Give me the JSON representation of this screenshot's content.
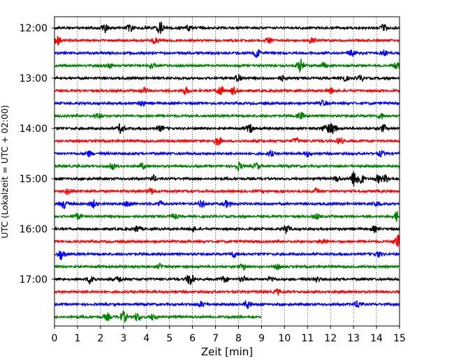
{
  "chart_data": {
    "type": "line",
    "title": "",
    "xlabel": "Zeit  [min]",
    "ylabel": "UTC (Lokalzeit = UTC + 02:00)",
    "xlim": [
      0,
      15
    ],
    "x_ticks": [
      "0",
      "1",
      "2",
      "3",
      "4",
      "5",
      "6",
      "7",
      "8",
      "9",
      "10",
      "11",
      "12",
      "13",
      "14",
      "15"
    ],
    "y_tick_labels": [
      "12:00",
      "13:00",
      "14:00",
      "15:00",
      "16:00",
      "17:00"
    ],
    "grid": "vertical dotted",
    "trace_interval_minutes": 15,
    "color_cycle": [
      "#000000",
      "#ff0000",
      "#0000ff",
      "#008000"
    ],
    "traces": [
      {
        "start": "12:00",
        "end_min": 15,
        "events": [
          [
            2.2,
            2.2
          ],
          [
            3.3,
            1.6
          ],
          [
            4.6,
            2.8
          ],
          [
            5.8,
            1.2
          ],
          [
            14.3,
            1.3
          ]
        ]
      },
      {
        "start": "12:15",
        "end_min": 15,
        "events": [
          [
            0.1,
            2.2
          ],
          [
            4.4,
            1.6
          ],
          [
            9.3,
            1.1
          ],
          [
            11.2,
            1.1
          ]
        ]
      },
      {
        "start": "12:30",
        "end_min": 15,
        "events": [
          [
            8.8,
            1.8
          ],
          [
            12.9,
            1.5
          ],
          [
            14.3,
            1.2
          ]
        ]
      },
      {
        "start": "12:45",
        "end_min": 15,
        "events": [
          [
            2.4,
            1.1
          ],
          [
            4.2,
            1.3
          ],
          [
            10.7,
            3.5
          ],
          [
            11.7,
            1.2
          ],
          [
            14.9,
            1.5
          ]
        ]
      },
      {
        "start": "13:00",
        "end_min": 15,
        "events": [
          [
            8.0,
            1.9
          ],
          [
            9.9,
            1.2
          ],
          [
            12.6,
            1.4
          ],
          [
            13.3,
            1.3
          ]
        ]
      },
      {
        "start": "13:15",
        "end_min": 15,
        "events": [
          [
            3.9,
            1.2
          ],
          [
            5.7,
            1.6
          ],
          [
            7.2,
            2.3
          ],
          [
            7.8,
            1.7
          ],
          [
            12.0,
            1.2
          ]
        ]
      },
      {
        "start": "13:30",
        "end_min": 15,
        "events": [
          [
            3.8,
            1.2
          ],
          [
            11.7,
            1.2
          ]
        ]
      },
      {
        "start": "13:45",
        "end_min": 15,
        "events": [
          [
            1.9,
            1.2
          ],
          [
            10.7,
            1.3
          ],
          [
            14.2,
            1.3
          ]
        ]
      },
      {
        "start": "14:00",
        "end_min": 15,
        "events": [
          [
            2.9,
            2.3
          ],
          [
            4.6,
            1.2
          ],
          [
            8.5,
            2.0
          ],
          [
            11.8,
            2.3
          ],
          [
            12.1,
            2.5
          ],
          [
            14.3,
            1.6
          ]
        ]
      },
      {
        "start": "14:15",
        "end_min": 15,
        "events": [
          [
            7.1,
            2.0
          ],
          [
            10.5,
            1.2
          ],
          [
            12.4,
            1.4
          ]
        ]
      },
      {
        "start": "14:30",
        "end_min": 15,
        "events": [
          [
            1.5,
            1.2
          ],
          [
            9.4,
            1.2
          ],
          [
            11.0,
            1.2
          ],
          [
            14.2,
            1.2
          ]
        ]
      },
      {
        "start": "14:45",
        "end_min": 15,
        "events": [
          [
            2.5,
            1.6
          ],
          [
            3.8,
            1.3
          ],
          [
            8.0,
            1.9
          ],
          [
            8.8,
            1.4
          ]
        ]
      },
      {
        "start": "15:00",
        "end_min": 15,
        "events": [
          [
            4.3,
            1.4
          ],
          [
            12.3,
            1.3
          ],
          [
            13.0,
            3.5
          ],
          [
            13.3,
            3.0
          ],
          [
            14.1,
            1.8
          ],
          [
            14.4,
            1.6
          ]
        ]
      },
      {
        "start": "15:15",
        "end_min": 15,
        "events": [
          [
            0.6,
            1.3
          ],
          [
            4.2,
            1.3
          ],
          [
            11.4,
            1.1
          ]
        ]
      },
      {
        "start": "15:30",
        "end_min": 15,
        "events": [
          [
            0.4,
            1.9
          ],
          [
            1.7,
            1.6
          ],
          [
            3.2,
            1.5
          ],
          [
            4.6,
            1.3
          ],
          [
            6.4,
            1.6
          ],
          [
            7.5,
            1.6
          ],
          [
            14.0,
            1.2
          ]
        ]
      },
      {
        "start": "15:45",
        "end_min": 15,
        "events": [
          [
            1.0,
            1.5
          ],
          [
            5.2,
            1.2
          ],
          [
            11.4,
            1.3
          ],
          [
            14.9,
            2.3
          ]
        ]
      },
      {
        "start": "16:00",
        "end_min": 15,
        "events": [
          [
            3.6,
            1.6
          ],
          [
            6.0,
            1.2
          ],
          [
            10.1,
            2.1
          ],
          [
            13.9,
            1.2
          ]
        ]
      },
      {
        "start": "16:15",
        "end_min": 15,
        "events": [
          [
            11.7,
            1.2
          ],
          [
            14.9,
            3.0
          ]
        ]
      },
      {
        "start": "16:30",
        "end_min": 15,
        "events": [
          [
            0.3,
            2.5
          ],
          [
            7.8,
            1.3
          ],
          [
            14.1,
            1.2
          ]
        ]
      },
      {
        "start": "16:45",
        "end_min": 15,
        "events": [
          [
            4.6,
            1.2
          ],
          [
            8.2,
            1.2
          ],
          [
            9.7,
            1.2
          ]
        ]
      },
      {
        "start": "17:00",
        "end_min": 15,
        "events": [
          [
            1.6,
            2.6
          ],
          [
            2.8,
            1.3
          ],
          [
            5.9,
            3.0
          ],
          [
            7.4,
            1.5
          ],
          [
            8.2,
            1.2
          ],
          [
            9.4,
            1.2
          ],
          [
            11.4,
            1.2
          ]
        ]
      },
      {
        "start": "17:15",
        "end_min": 15,
        "events": [
          [
            9.7,
            1.1
          ]
        ]
      },
      {
        "start": "17:30",
        "end_min": 15,
        "events": [
          [
            6.4,
            1.2
          ],
          [
            8.4,
            1.8
          ],
          [
            13.2,
            1.7
          ]
        ]
      },
      {
        "start": "17:45",
        "end_min": 9,
        "events": [
          [
            2.3,
            1.4
          ],
          [
            3.0,
            2.6
          ],
          [
            3.6,
            1.8
          ],
          [
            4.3,
            1.5
          ]
        ]
      }
    ]
  }
}
